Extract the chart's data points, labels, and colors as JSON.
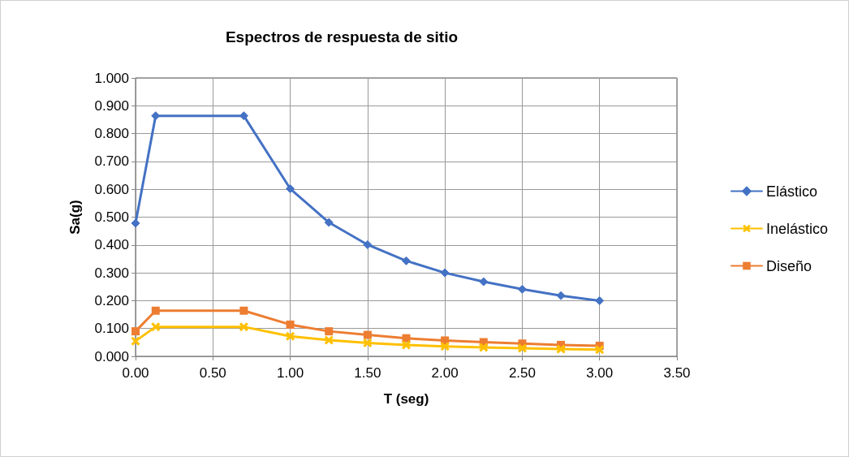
{
  "chart_data": {
    "type": "line",
    "title": "Espectros de respuesta de sitio",
    "xlabel": "T (seg)",
    "ylabel": "Sa(g)",
    "x": [
      0,
      0.13,
      0.7,
      1,
      1.25,
      1.5,
      1.75,
      2,
      2.25,
      2.5,
      2.75,
      3
    ],
    "series": [
      {
        "name": "Elástico",
        "color": "#4472c4",
        "marker": "diamond",
        "values": [
          0.478,
          0.864,
          0.864,
          0.602,
          0.481,
          0.401,
          0.343,
          0.3,
          0.268,
          0.241,
          0.218,
          0.2
        ]
      },
      {
        "name": "Inelástico",
        "color": "#ffc000",
        "marker": "cross",
        "values": [
          0.055,
          0.106,
          0.106,
          0.072,
          0.058,
          0.048,
          0.041,
          0.036,
          0.032,
          0.029,
          0.026,
          0.024
        ]
      },
      {
        "name": "Diseño",
        "color": "#ed7d31",
        "marker": "square",
        "values": [
          0.09,
          0.164,
          0.164,
          0.114,
          0.09,
          0.077,
          0.065,
          0.057,
          0.051,
          0.046,
          0.041,
          0.038
        ]
      }
    ],
    "xlim": [
      0,
      3.5
    ],
    "xticks": [
      {
        "value": 0,
        "label": "0.00"
      },
      {
        "value": 0.5,
        "label": "0.50"
      },
      {
        "value": 1,
        "label": "1.00"
      },
      {
        "value": 1.5,
        "label": "1.50"
      },
      {
        "value": 2,
        "label": "2.00"
      },
      {
        "value": 2.5,
        "label": "2.50"
      },
      {
        "value": 3,
        "label": "3.00"
      },
      {
        "value": 3.5,
        "label": "3.50"
      }
    ],
    "ylim": [
      0,
      1
    ],
    "yticks": [
      {
        "value": 0,
        "label": "0.000"
      },
      {
        "value": 0.1,
        "label": "0.100"
      },
      {
        "value": 0.2,
        "label": "0.200"
      },
      {
        "value": 0.3,
        "label": "0.300"
      },
      {
        "value": 0.4,
        "label": "0.400"
      },
      {
        "value": 0.5,
        "label": "0.500"
      },
      {
        "value": 0.6,
        "label": "0.600"
      },
      {
        "value": 0.7,
        "label": "0.700"
      },
      {
        "value": 0.8,
        "label": "0.800"
      },
      {
        "value": 0.9,
        "label": "0.900"
      },
      {
        "value": 1,
        "label": "1.000"
      }
    ],
    "grid": true,
    "legend": "right",
    "line_style": "solid"
  }
}
